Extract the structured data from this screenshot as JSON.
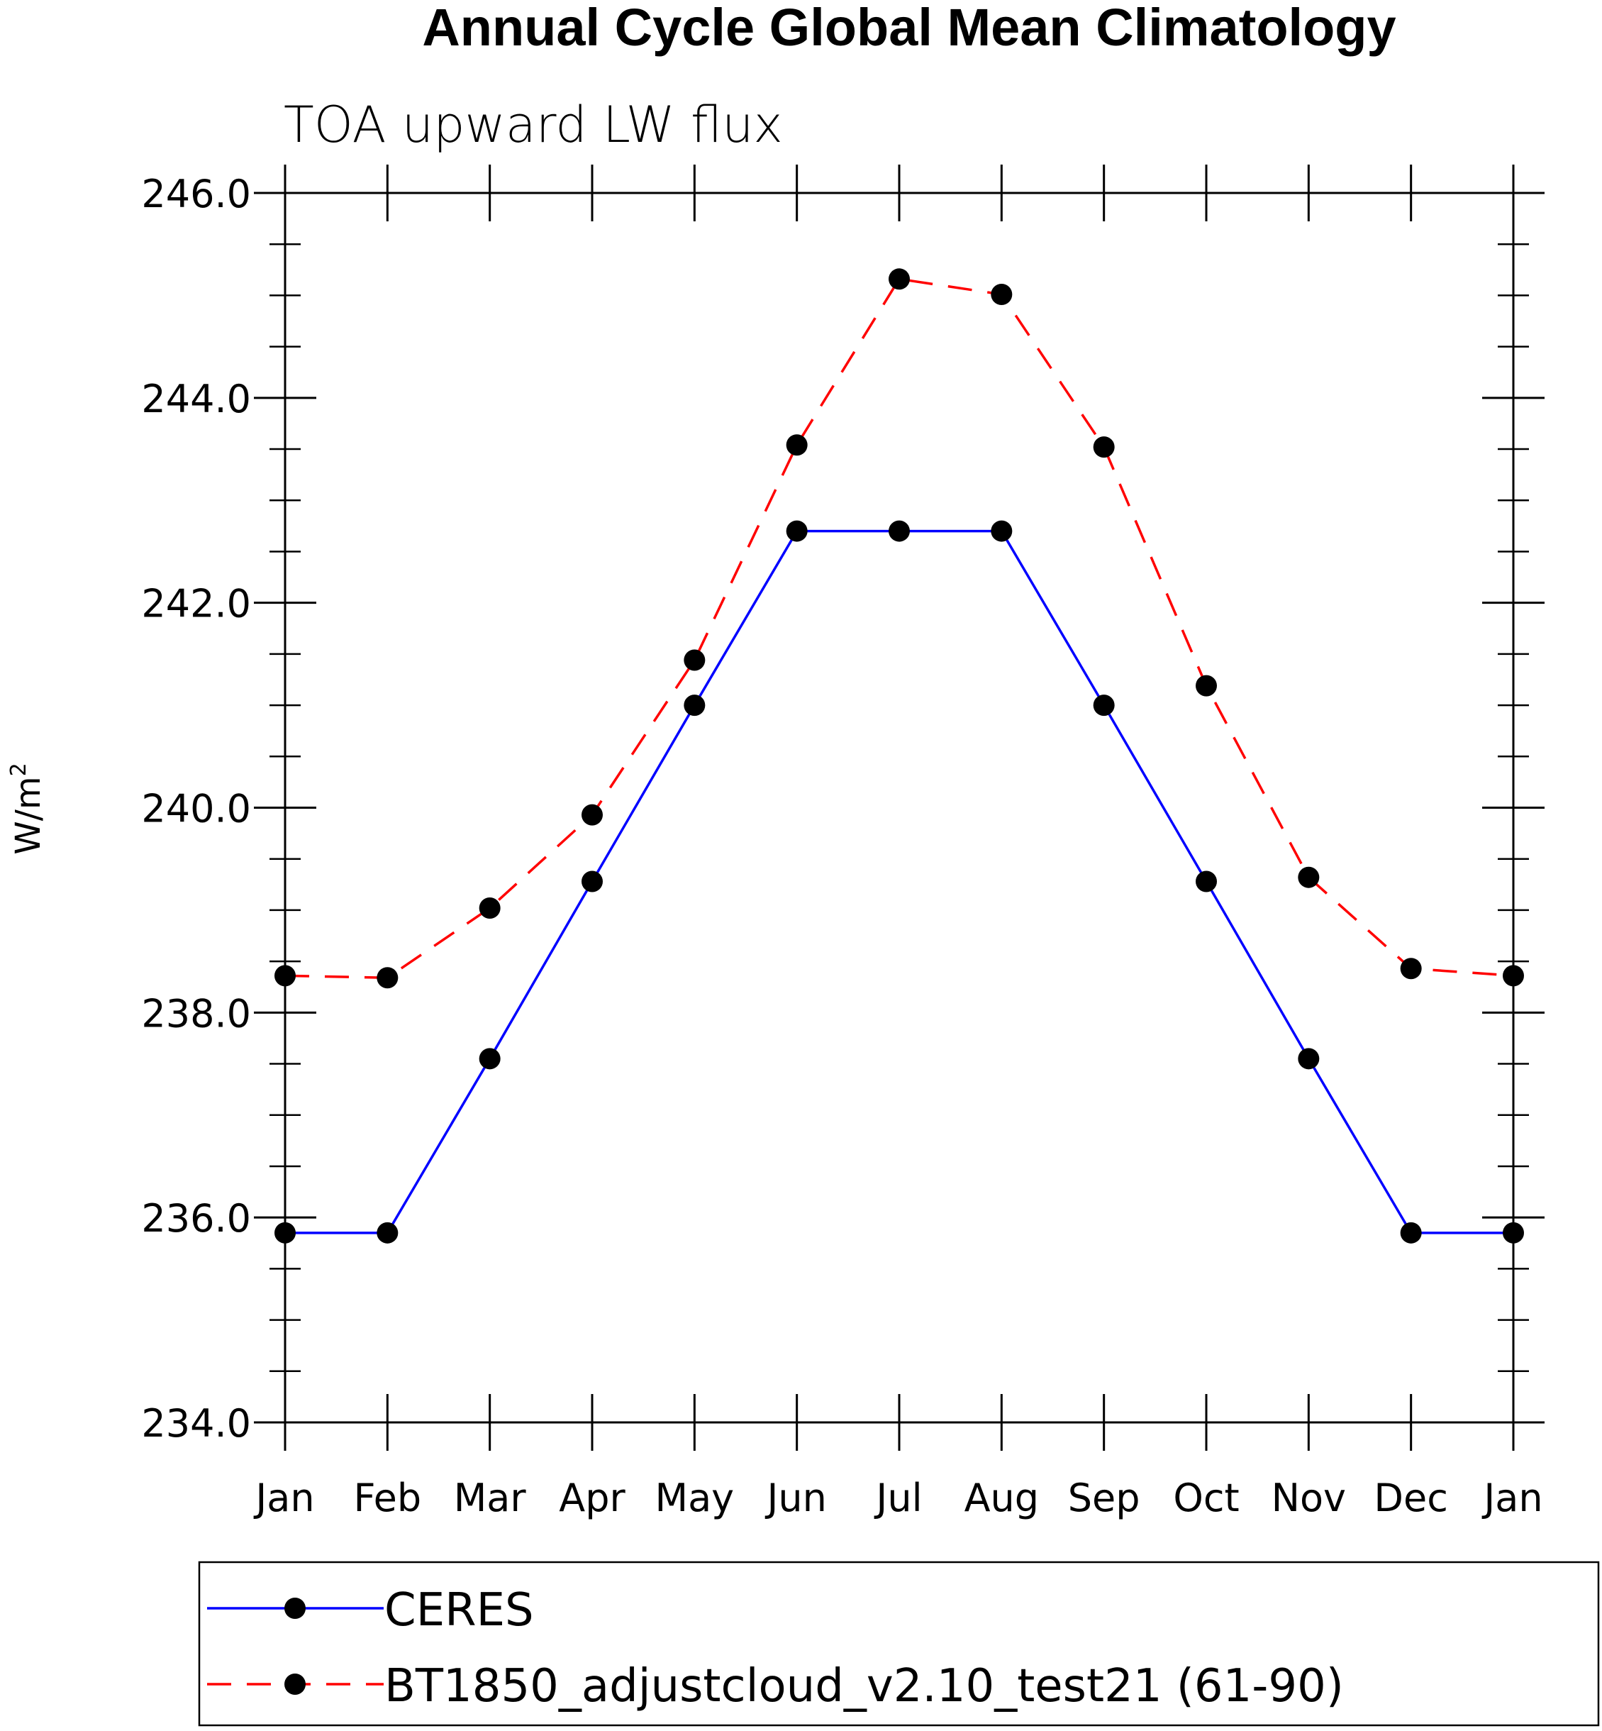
{
  "chart_data": {
    "type": "line",
    "title": "Annual Cycle Global Mean Climatology",
    "subtitle": "TOA upward LW flux",
    "ylabel": "W/m",
    "ylabel_sup": "2",
    "xlabel": "",
    "categories": [
      "Jan",
      "Feb",
      "Mar",
      "Apr",
      "May",
      "Jun",
      "Jul",
      "Aug",
      "Sep",
      "Oct",
      "Nov",
      "Dec",
      "Jan"
    ],
    "ylim": [
      234.0,
      246.0
    ],
    "yticks": [
      "234.0",
      "236.0",
      "238.0",
      "240.0",
      "242.0",
      "244.0",
      "246.0"
    ],
    "grid": false,
    "legend_position": "bottom",
    "series": [
      {
        "name": "CERES",
        "color": "#0000ff",
        "dash": "solid",
        "values": [
          235.85,
          235.85,
          237.55,
          239.28,
          241.0,
          242.7,
          242.7,
          242.7,
          241.0,
          239.28,
          237.55,
          235.85,
          235.85
        ]
      },
      {
        "name": "BT1850_adjustcloud_v2.10_test21 (61-90)",
        "color": "#ff0000",
        "dash": "dashed",
        "values": [
          238.36,
          238.34,
          239.02,
          239.93,
          241.44,
          243.54,
          245.16,
          245.01,
          243.52,
          241.19,
          239.32,
          238.43,
          238.36
        ]
      }
    ]
  }
}
